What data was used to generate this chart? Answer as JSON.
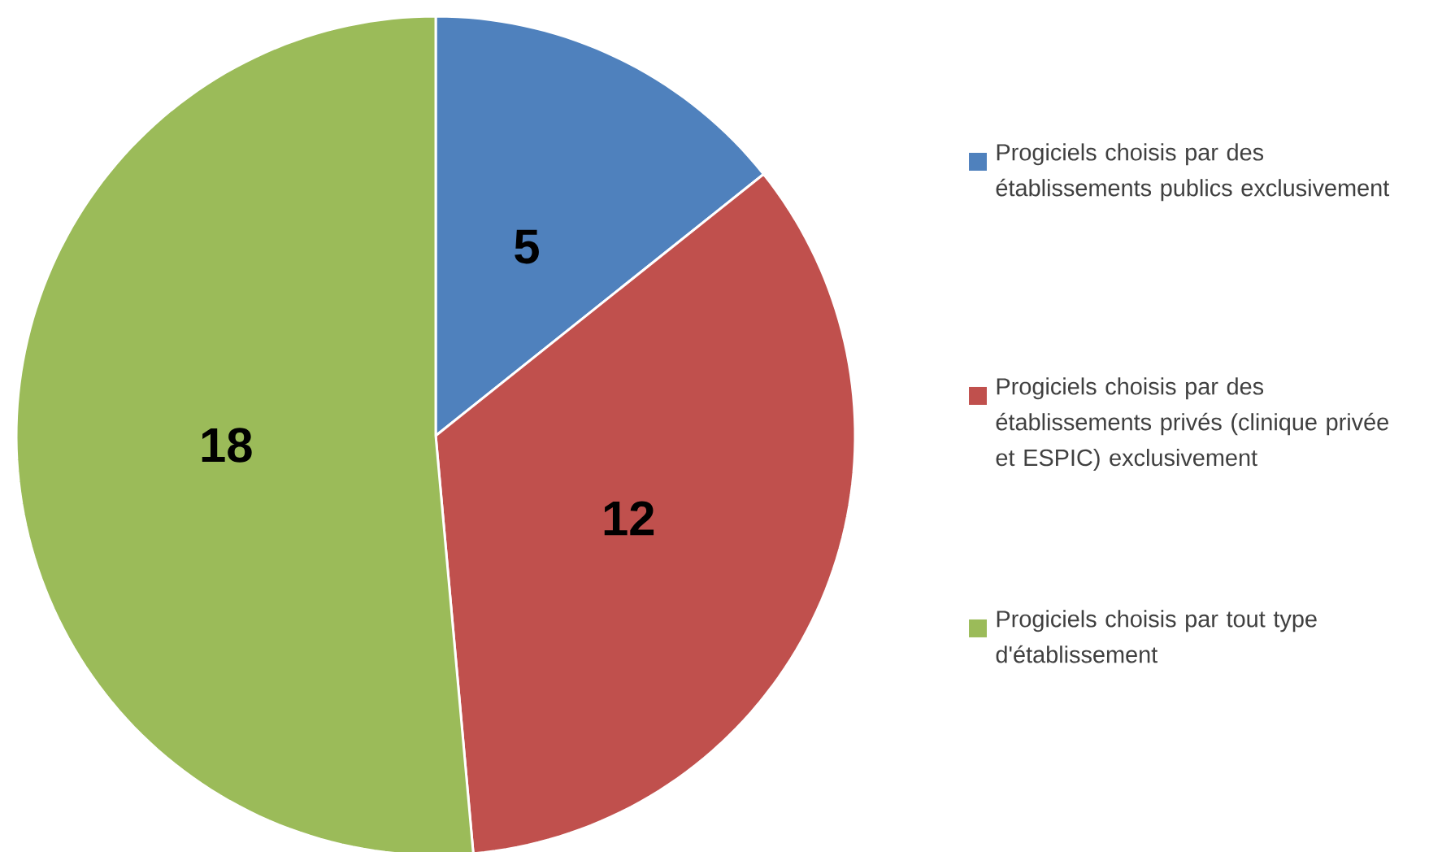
{
  "chart_data": {
    "type": "pie",
    "categories": [
      "Progiciels choisis par des établissements publics exclusivement",
      "Progiciels choisis par des établissements privés (clinique privée et ESPIC) exclusivement",
      "Progiciels choisis par tout type d'établissement"
    ],
    "values": [
      5,
      12,
      18
    ],
    "colors": [
      "#4f81bd",
      "#c0504d",
      "#9bbb59"
    ],
    "data_labels": true,
    "legend": "right"
  }
}
